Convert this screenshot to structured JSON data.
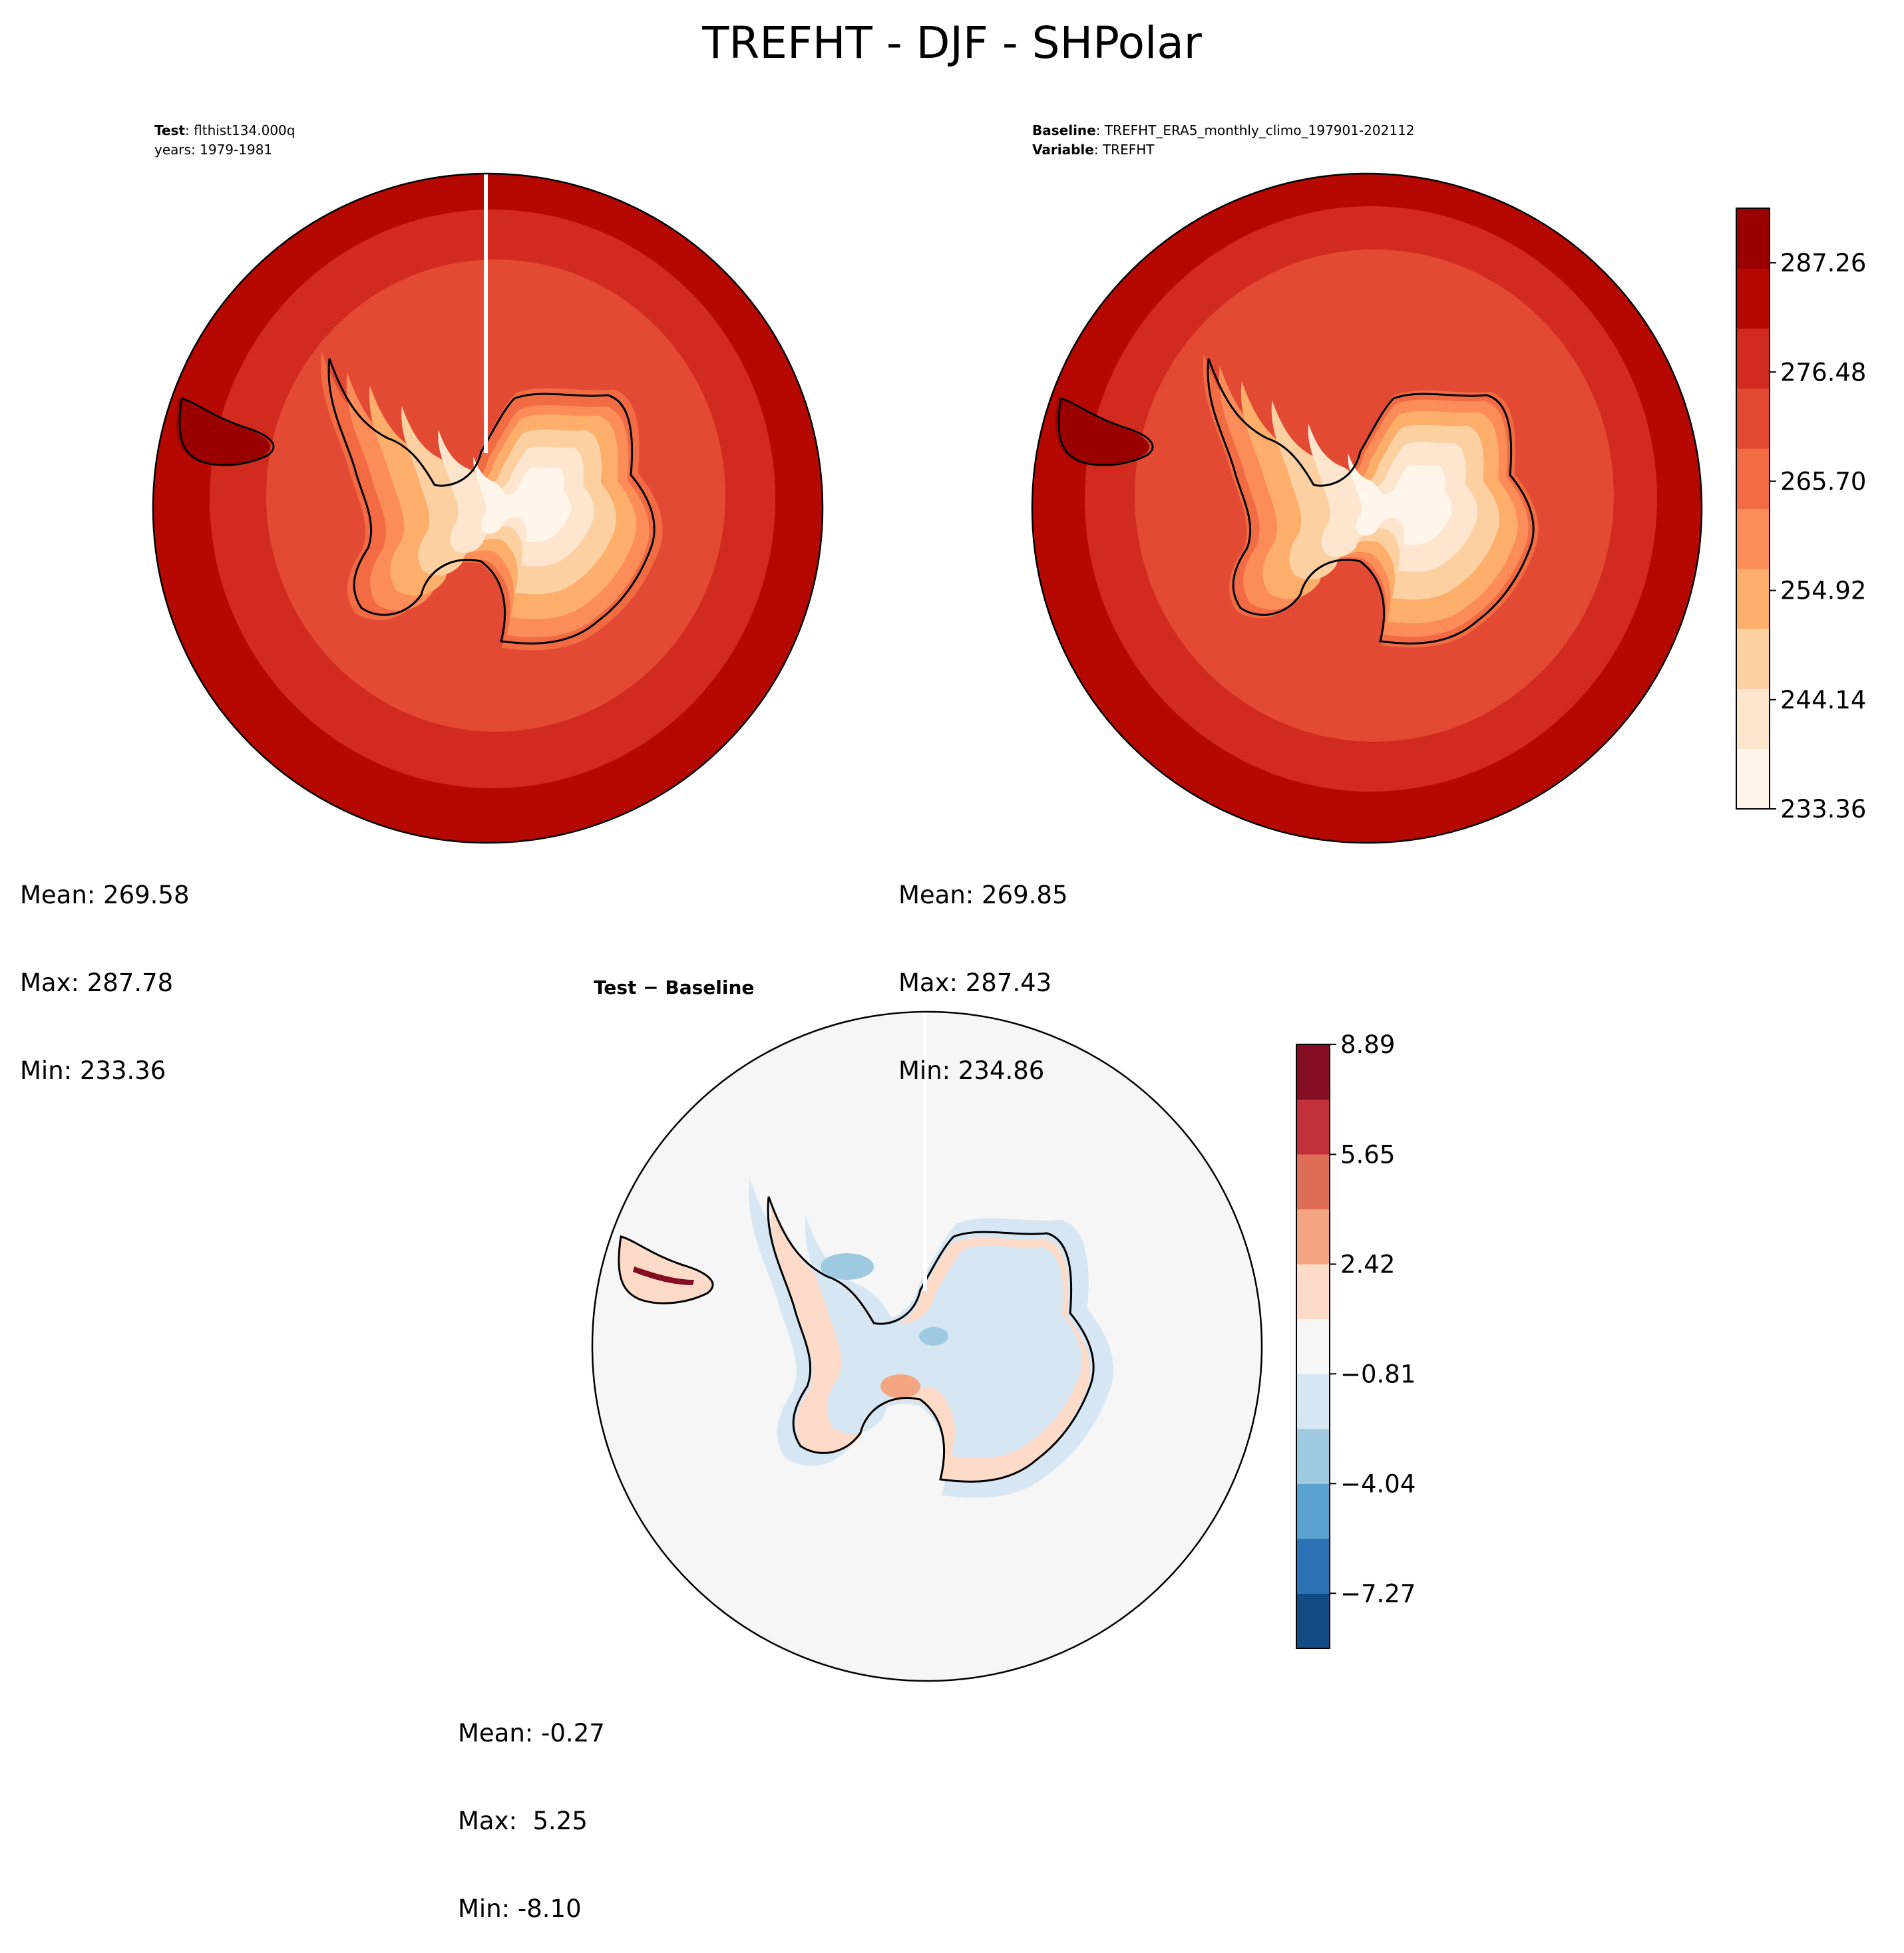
{
  "figure_title": "TREFHT - DJF - SHPolar",
  "test_panel": {
    "header_line1_label": "Test",
    "header_line1_value": "flthist134.000q",
    "header_line2": "years: 1979-1981",
    "stats": {
      "mean": "Mean: 269.58",
      "max": "Max: 287.78",
      "min": "Min: 233.36"
    }
  },
  "baseline_panel": {
    "header_line1_label": "Baseline",
    "header_line1_value": "TREFHT_ERA5_monthly_climo_197901-202112",
    "header_line2_label": "Variable",
    "header_line2_value": "TREFHT",
    "stats": {
      "mean": "Mean: 269.85",
      "max": "Max: 287.43",
      "min": "Min: 234.86"
    }
  },
  "diff_panel": {
    "title": "Test − Baseline",
    "stats": {
      "mean": "Mean: -0.27",
      "max": "Max:  5.25",
      "min": "Min: -8.10"
    }
  },
  "field_colorbar": {
    "tick_labels": [
      "233.36",
      "244.14",
      "254.92",
      "265.70",
      "276.48",
      "287.26"
    ],
    "colors": [
      "#fff5eb",
      "#fee6ce",
      "#fdd0a2",
      "#fdae6b",
      "#fc8d59",
      "#f26b43",
      "#e34a33",
      "#d32a1f",
      "#b50800",
      "#9b0000"
    ],
    "vmin": 233.36,
    "vmax": 292.65
  },
  "diff_colorbar": {
    "tick_labels": [
      "−7.27",
      "−4.04",
      "−0.81",
      "2.42",
      "5.65",
      "8.89"
    ],
    "colors": [
      "#134b85",
      "#2c73b6",
      "#5ba3cf",
      "#9dcae1",
      "#d6e7f3",
      "#f6f6f6",
      "#fedbc8",
      "#f4a582",
      "#de6f56",
      "#c2303a",
      "#850d22"
    ],
    "vmin": -8.89,
    "vmax": 8.89
  }
}
